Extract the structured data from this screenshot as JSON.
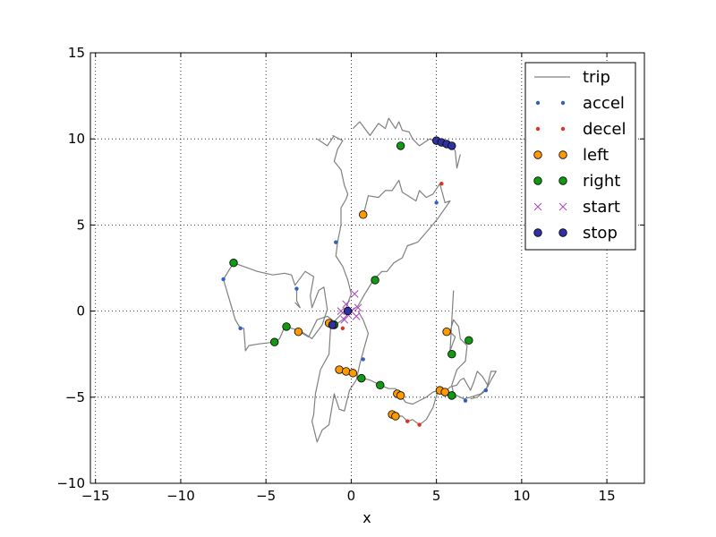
{
  "chart_data": {
    "type": "scatter",
    "xlabel": "x",
    "ylabel": "",
    "xlim": [
      -15.3,
      17.2
    ],
    "ylim": [
      -10,
      15
    ],
    "xticks": [
      -15,
      -10,
      -5,
      0,
      5,
      10,
      15
    ],
    "yticks": [
      -10,
      -5,
      0,
      5,
      10,
      15
    ],
    "grid": true,
    "legend_position": "top-right",
    "colors": {
      "trip": "#808080",
      "accel": "#3060c0",
      "decel": "#e03020",
      "left": "#ff9900",
      "right": "#119911",
      "start": "#b040c0",
      "stop": "#3030a0"
    },
    "series": [
      {
        "name": "trip",
        "kind": "line",
        "paths": [
          [
            [
              -7.5,
              1.85
            ],
            [
              -6.9,
              2.8
            ],
            [
              -5.5,
              2.3
            ],
            [
              -4.6,
              2.1
            ],
            [
              -3.9,
              2.2
            ],
            [
              -3.5,
              2.1
            ],
            [
              -3.3,
              1.5
            ],
            [
              -2.7,
              2.3
            ],
            [
              -2.2,
              2.0
            ],
            [
              -2.4,
              0.9
            ],
            [
              -2.3,
              0.2
            ],
            [
              -1.9,
              1.2
            ],
            [
              -1.6,
              1.4
            ],
            [
              -1.4,
              0.1
            ],
            [
              -1.7,
              -0.8
            ],
            [
              -2.3,
              -1.6
            ],
            [
              -2.9,
              -1.2
            ],
            [
              -3.1,
              -1.1
            ],
            [
              -3.9,
              -0.9
            ],
            [
              -4.2,
              -1.6
            ],
            [
              -4.5,
              -1.8
            ],
            [
              -5.4,
              -1.9
            ],
            [
              -6.0,
              -2.0
            ],
            [
              -6.2,
              -2.3
            ],
            [
              -6.3,
              -1.0
            ],
            [
              -6.5,
              -1.0
            ],
            [
              -6.8,
              -0.5
            ],
            [
              -7.5,
              1.85
            ]
          ],
          [
            [
              -3.2,
              1.3
            ],
            [
              -3.2,
              0.6
            ],
            [
              -3.0,
              0.2
            ],
            [
              -3.3,
              0.5
            ]
          ],
          [
            [
              -1.1,
              10.2
            ],
            [
              -0.5,
              9.9
            ],
            [
              -0.8,
              9.4
            ],
            [
              -1.0,
              8.7
            ],
            [
              -0.6,
              8.2
            ],
            [
              -0.4,
              7.3
            ],
            [
              -0.2,
              6.8
            ],
            [
              -0.3,
              6.5
            ],
            [
              -0.6,
              6.0
            ],
            [
              -0.6,
              5.0
            ],
            [
              -0.8,
              4.0
            ],
            [
              -0.9,
              3.2
            ],
            [
              -0.5,
              2.6
            ],
            [
              -0.2,
              1.8
            ],
            [
              0.0,
              1.0
            ],
            [
              -0.3,
              0.2
            ],
            [
              -0.4,
              0.0
            ],
            [
              -1.2,
              -0.8
            ],
            [
              -1.3,
              -2.5
            ],
            [
              -1.8,
              -3.4
            ],
            [
              -2.1,
              -4.8
            ],
            [
              -2.2,
              -6.0
            ],
            [
              -2.3,
              -6.4
            ],
            [
              -2.0,
              -7.6
            ],
            [
              -1.7,
              -6.9
            ],
            [
              -1.3,
              -6.6
            ],
            [
              -1.0,
              -4.8
            ],
            [
              -0.7,
              -5.7
            ],
            [
              -0.4,
              -5.8
            ],
            [
              -0.1,
              -4.6
            ],
            [
              0.3,
              -4.0
            ],
            [
              0.5,
              -3.1
            ],
            [
              0.8,
              -2.0
            ],
            [
              1.0,
              -1.3
            ],
            [
              0.7,
              -0.5
            ],
            [
              0.4,
              0.0
            ]
          ],
          [
            [
              0.1,
              10.6
            ],
            [
              0.5,
              11.0
            ],
            [
              1.1,
              10.2
            ],
            [
              1.6,
              10.9
            ],
            [
              2.0,
              10.6
            ],
            [
              2.2,
              11.2
            ],
            [
              2.6,
              10.6
            ],
            [
              2.8,
              11.0
            ],
            [
              3.0,
              10.5
            ],
            [
              3.4,
              10.4
            ],
            [
              3.6,
              10.0
            ],
            [
              4.0,
              9.6
            ],
            [
              4.3,
              9.8
            ],
            [
              4.6,
              10.0
            ],
            [
              5.0,
              9.8
            ],
            [
              5.5,
              9.7
            ],
            [
              5.9,
              9.6
            ],
            [
              6.1,
              9.3
            ],
            [
              6.2,
              8.3
            ],
            [
              6.4,
              9.1
            ]
          ],
          [
            [
              0.7,
              5.6
            ],
            [
              0.8,
              5.9
            ],
            [
              1.0,
              6.7
            ],
            [
              1.6,
              6.6
            ],
            [
              2.0,
              7.0
            ],
            [
              2.4,
              7.0
            ],
            [
              2.8,
              7.6
            ],
            [
              3.0,
              6.9
            ],
            [
              3.8,
              6.4
            ],
            [
              4.0,
              7.0
            ],
            [
              4.4,
              6.6
            ],
            [
              4.8,
              6.8
            ],
            [
              5.2,
              7.4
            ],
            [
              5.5,
              6.3
            ],
            [
              5.8,
              6.4
            ],
            [
              5.1,
              5.4
            ],
            [
              4.6,
              4.8
            ],
            [
              3.9,
              4.0
            ],
            [
              3.3,
              3.8
            ],
            [
              3.0,
              3.1
            ],
            [
              2.5,
              2.8
            ],
            [
              2.1,
              2.3
            ],
            [
              1.8,
              2.3
            ],
            [
              1.3,
              1.8
            ],
            [
              0.8,
              1.0
            ],
            [
              0.4,
              0.3
            ],
            [
              0.0,
              0.0
            ],
            [
              -0.2,
              -0.2
            ],
            [
              -0.5,
              -0.5
            ],
            [
              -0.8,
              -0.7
            ],
            [
              -1.3,
              -0.7
            ]
          ],
          [
            [
              -2.0,
              10.0
            ],
            [
              -1.4,
              9.6
            ],
            [
              -1.0,
              10.2
            ]
          ],
          [
            [
              -3.2,
              -1.1
            ],
            [
              -2.5,
              -1.5
            ],
            [
              -2.0,
              -0.5
            ],
            [
              -1.4,
              -0.3
            ],
            [
              -1.0,
              -0.6
            ]
          ],
          [
            [
              -0.7,
              -3.4
            ],
            [
              0.0,
              -3.6
            ],
            [
              0.6,
              -3.9
            ],
            [
              1.1,
              -4.0
            ],
            [
              1.7,
              -4.3
            ],
            [
              2.2,
              -4.5
            ],
            [
              2.6,
              -4.5
            ],
            [
              2.8,
              -4.8
            ],
            [
              2.9,
              -4.9
            ],
            [
              3.2,
              -5.3
            ],
            [
              3.6,
              -5.4
            ],
            [
              4.0,
              -5.2
            ],
            [
              4.4,
              -5.0
            ],
            [
              4.8,
              -4.7
            ],
            [
              5.2,
              -4.6
            ],
            [
              5.5,
              -4.7
            ],
            [
              5.8,
              -4.4
            ],
            [
              6.2,
              -4.3
            ],
            [
              6.4,
              -4.0
            ],
            [
              6.6,
              -3.9
            ],
            [
              7.0,
              -4.6
            ],
            [
              7.2,
              -4.1
            ],
            [
              7.4,
              -3.5
            ],
            [
              7.7,
              -3.8
            ],
            [
              8.0,
              -4.3
            ],
            [
              8.2,
              -3.5
            ],
            [
              8.5,
              -3.5
            ],
            [
              8.2,
              -4.0
            ],
            [
              8.0,
              -4.4
            ],
            [
              7.6,
              -4.8
            ],
            [
              7.0,
              -5.0
            ],
            [
              6.6,
              -5.1
            ],
            [
              6.0,
              -4.8
            ],
            [
              5.9,
              -4.3
            ],
            [
              6.2,
              -3.4
            ],
            [
              6.7,
              -2.9
            ],
            [
              6.8,
              -2.0
            ],
            [
              6.4,
              -1.6
            ],
            [
              6.3,
              -0.9
            ],
            [
              6.0,
              -0.5
            ],
            [
              5.8,
              -1.2
            ],
            [
              6.1,
              -1.5
            ],
            [
              5.8,
              -2.3
            ],
            [
              6.0,
              1.2
            ]
          ],
          [
            [
              2.4,
              -6.0
            ],
            [
              2.6,
              -6.1
            ],
            [
              3.0,
              -6.1
            ],
            [
              3.3,
              -6.4
            ],
            [
              3.6,
              -6.3
            ],
            [
              4.0,
              -6.6
            ],
            [
              4.4,
              -6.3
            ],
            [
              4.8,
              -5.6
            ],
            [
              5.1,
              -4.6
            ]
          ],
          [
            [
              7.0,
              -5.1
            ],
            [
              7.4,
              -5.0
            ],
            [
              7.9,
              -4.6
            ],
            [
              8.0,
              -4.3
            ]
          ]
        ]
      },
      {
        "name": "accel",
        "kind": "dot",
        "points": [
          [
            -7.5,
            1.85
          ],
          [
            -3.2,
            1.3
          ],
          [
            -6.5,
            -1.0
          ],
          [
            -0.9,
            4.0
          ],
          [
            5.0,
            6.3
          ],
          [
            0.7,
            -2.8
          ],
          [
            6.7,
            -5.2
          ],
          [
            7.9,
            -4.6
          ],
          [
            -1.3,
            -0.6
          ]
        ]
      },
      {
        "name": "decel",
        "kind": "dot",
        "points": [
          [
            5.3,
            7.4
          ],
          [
            -0.5,
            -1.0
          ],
          [
            3.3,
            -6.4
          ],
          [
            4.0,
            -6.6
          ],
          [
            2.9,
            -4.9
          ]
        ]
      },
      {
        "name": "left",
        "kind": "circle",
        "points": [
          [
            0.7,
            5.6
          ],
          [
            -3.1,
            -1.2
          ],
          [
            -1.3,
            -0.7
          ],
          [
            5.6,
            -1.2
          ],
          [
            -0.7,
            -3.4
          ],
          [
            -0.3,
            -3.5
          ],
          [
            0.1,
            -3.6
          ],
          [
            2.7,
            -4.8
          ],
          [
            2.9,
            -4.9
          ],
          [
            5.2,
            -4.6
          ],
          [
            5.5,
            -4.7
          ],
          [
            2.4,
            -6.0
          ],
          [
            2.6,
            -6.1
          ]
        ]
      },
      {
        "name": "right",
        "kind": "circle",
        "points": [
          [
            2.9,
            9.6
          ],
          [
            -6.9,
            2.8
          ],
          [
            1.4,
            1.8
          ],
          [
            -3.8,
            -0.9
          ],
          [
            -4.5,
            -1.8
          ],
          [
            6.9,
            -1.7
          ],
          [
            5.9,
            -2.5
          ],
          [
            0.6,
            -3.9
          ],
          [
            1.7,
            -4.3
          ],
          [
            5.9,
            -4.9
          ],
          [
            -1.0,
            -0.8
          ]
        ]
      },
      {
        "name": "start",
        "kind": "cross",
        "points": [
          [
            0.2,
            1.0
          ],
          [
            -0.3,
            0.4
          ],
          [
            0.0,
            0.0
          ],
          [
            -0.6,
            0.0
          ],
          [
            -0.2,
            -0.2
          ],
          [
            0.3,
            -0.3
          ],
          [
            -0.4,
            -0.5
          ],
          [
            0.4,
            0.2
          ]
        ]
      },
      {
        "name": "stop",
        "kind": "circle",
        "points": [
          [
            5.0,
            9.9
          ],
          [
            5.3,
            9.8
          ],
          [
            5.6,
            9.7
          ],
          [
            5.9,
            9.6
          ],
          [
            -0.2,
            0.0
          ],
          [
            -1.1,
            -0.8
          ]
        ]
      }
    ],
    "legend": [
      {
        "name": "trip",
        "kind": "line"
      },
      {
        "name": "accel",
        "kind": "dot"
      },
      {
        "name": "decel",
        "kind": "dot"
      },
      {
        "name": "left",
        "kind": "circle"
      },
      {
        "name": "right",
        "kind": "circle"
      },
      {
        "name": "start",
        "kind": "cross"
      },
      {
        "name": "stop",
        "kind": "circle"
      }
    ]
  }
}
